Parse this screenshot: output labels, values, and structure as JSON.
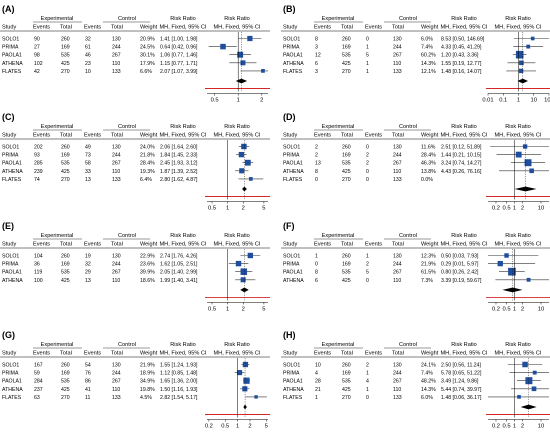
{
  "header": {
    "experimental": "Experimental",
    "control": "Control",
    "risk_ratio": "Risk Ratio",
    "study": "Study",
    "events": "Events",
    "total": "Total",
    "weight": "Weight",
    "mh": "MH, Fixed, 95% CI"
  },
  "colors": {
    "box": "#1f4e9c",
    "diamond": "#000000",
    "line": "#333333",
    "red": "#d62728",
    "rule": "#000000"
  },
  "chart_data": [
    {
      "type": "forest",
      "panel_label": "(A)",
      "studies": [
        {
          "study": "SOLO1",
          "e_events": 90,
          "e_total": 260,
          "c_events": 32,
          "c_total": 130,
          "weight": "20.9%",
          "rr_text": "1.41 [1.00, 1.98]",
          "rr": 1.41,
          "lo": 1.0,
          "hi": 1.98
        },
        {
          "study": "PRIMA",
          "e_events": 27,
          "e_total": 169,
          "c_events": 61,
          "c_total": 244,
          "weight": "24.5%",
          "rr_text": "0.64 [0.42, 0.96]",
          "rr": 0.64,
          "lo": 0.42,
          "hi": 0.96
        },
        {
          "study": "PAOLA1",
          "e_events": 98,
          "e_total": 535,
          "c_events": 46,
          "c_total": 267,
          "weight": "30.1%",
          "rr_text": "1.06 [0.77, 1.46]",
          "rr": 1.06,
          "lo": 0.77,
          "hi": 1.46
        },
        {
          "study": "ATHENA",
          "e_events": 102,
          "e_total": 425,
          "c_events": 23,
          "c_total": 110,
          "weight": "17.9%",
          "rr_text": "1.15 [0.77, 1.71]",
          "rr": 1.15,
          "lo": 0.77,
          "hi": 1.71
        },
        {
          "study": "FLATES",
          "e_events": 42,
          "e_total": 270,
          "c_events": 10,
          "c_total": 133,
          "weight": "6.6%",
          "rr_text": "2.07 [1.07, 3.99]",
          "rr": 2.07,
          "lo": 1.07,
          "hi": 3.99
        }
      ],
      "pooled": {
        "rr": 1.1,
        "lo": 0.93,
        "hi": 1.3
      },
      "x_ticks": [
        "0.5",
        "1",
        "2"
      ],
      "x_tick_values": [
        0.5,
        1,
        2
      ],
      "xlim": [
        0.4,
        2.4
      ]
    },
    {
      "type": "forest",
      "panel_label": "(B)",
      "studies": [
        {
          "study": "SOLO1",
          "e_events": 8,
          "e_total": 260,
          "c_events": 0,
          "c_total": 130,
          "weight": "6.0%",
          "rr_text": "8.53 [0.50, 146.69]",
          "rr": 8.53,
          "lo": 0.5,
          "hi": 146.69
        },
        {
          "study": "PRIMA",
          "e_events": 3,
          "e_total": 169,
          "c_events": 1,
          "c_total": 244,
          "weight": "7.4%",
          "rr_text": "4.33 [0.45, 41.29]",
          "rr": 4.33,
          "lo": 0.45,
          "hi": 41.29
        },
        {
          "study": "PAOLA1",
          "e_events": 12,
          "e_total": 535,
          "c_events": 5,
          "c_total": 267,
          "weight": "60.2%",
          "rr_text": "1.20 [0.43, 3.36]",
          "rr": 1.2,
          "lo": 0.43,
          "hi": 3.36
        },
        {
          "study": "ATHENA",
          "e_events": 6,
          "e_total": 425,
          "c_events": 1,
          "c_total": 110,
          "weight": "14.3%",
          "rr_text": "1.55 [0.19, 12.77]",
          "rr": 1.55,
          "lo": 0.19,
          "hi": 12.77
        },
        {
          "study": "FLATES",
          "e_events": 3,
          "e_total": 270,
          "c_events": 1,
          "c_total": 133,
          "weight": "12.1%",
          "rr_text": "1.48 [0.16, 14.07]",
          "rr": 1.48,
          "lo": 0.16,
          "hi": 14.07
        }
      ],
      "pooled": {
        "rr": 1.9,
        "lo": 0.85,
        "hi": 4.2
      },
      "x_ticks": [
        "0.01",
        "0.1",
        "1",
        "10",
        "100"
      ],
      "x_tick_values": [
        0.01,
        0.1,
        1,
        10,
        100
      ],
      "xlim": [
        0.01,
        100
      ]
    },
    {
      "type": "forest",
      "panel_label": "(C)",
      "studies": [
        {
          "study": "SOLO1",
          "e_events": 202,
          "e_total": 260,
          "c_events": 49,
          "c_total": 130,
          "weight": "24.0%",
          "rr_text": "2.06 [1.64, 2.60]",
          "rr": 2.06,
          "lo": 1.64,
          "hi": 2.6
        },
        {
          "study": "PRIMA",
          "e_events": 93,
          "e_total": 169,
          "c_events": 73,
          "c_total": 244,
          "weight": "21.8%",
          "rr_text": "1.84 [1.45, 2.33]",
          "rr": 1.84,
          "lo": 1.45,
          "hi": 2.33
        },
        {
          "study": "PAOLA1",
          "e_events": 285,
          "e_total": 535,
          "c_events": 58,
          "c_total": 267,
          "weight": "28.4%",
          "rr_text": "2.45 [1.93, 3.12]",
          "rr": 2.45,
          "lo": 1.93,
          "hi": 3.12
        },
        {
          "study": "ATHENA",
          "e_events": 239,
          "e_total": 425,
          "c_events": 33,
          "c_total": 110,
          "weight": "19.3%",
          "rr_text": "1.87 [1.39, 2.52]",
          "rr": 1.87,
          "lo": 1.39,
          "hi": 2.52
        },
        {
          "study": "FLATES",
          "e_events": 74,
          "e_total": 270,
          "c_events": 13,
          "c_total": 133,
          "weight": "6.4%",
          "rr_text": "2.80 [1.62, 4.87]",
          "rr": 2.8,
          "lo": 1.62,
          "hi": 4.87
        }
      ],
      "pooled": {
        "rr": 2.1,
        "lo": 1.9,
        "hi": 2.35
      },
      "x_ticks": [
        "0.5",
        "1",
        "2",
        "5"
      ],
      "x_tick_values": [
        0.5,
        1,
        2,
        5
      ],
      "xlim": [
        0.4,
        6
      ]
    },
    {
      "type": "forest",
      "panel_label": "(D)",
      "studies": [
        {
          "study": "SOLO1",
          "e_events": 2,
          "e_total": 260,
          "c_events": 0,
          "c_total": 130,
          "weight": "11.6%",
          "rr_text": "2.51 [0.12, 51.89]",
          "rr": 2.51,
          "lo": 0.12,
          "hi": 51.89
        },
        {
          "study": "PRIMA",
          "e_events": 2,
          "e_total": 169,
          "c_events": 2,
          "c_total": 244,
          "weight": "28.4%",
          "rr_text": "1.44 [0.21, 10.15]",
          "rr": 1.44,
          "lo": 0.21,
          "hi": 10.15
        },
        {
          "study": "PAOLA1",
          "e_events": 13,
          "e_total": 535,
          "c_events": 2,
          "c_total": 267,
          "weight": "46.3%",
          "rr_text": "3.24 [0.74, 14.27]",
          "rr": 3.24,
          "lo": 0.74,
          "hi": 14.27
        },
        {
          "study": "ATHENA",
          "e_events": 8,
          "e_total": 425,
          "c_events": 0,
          "c_total": 110,
          "weight": "13.8%",
          "rr_text": "4.43 [0.26, 76.16]",
          "rr": 4.43,
          "lo": 0.26,
          "hi": 76.16
        },
        {
          "study": "FLATES",
          "e_events": 0,
          "e_total": 270,
          "c_events": 0,
          "c_total": 133,
          "weight": "0.0%",
          "rr_text": "",
          "rr": null,
          "lo": null,
          "hi": null
        }
      ],
      "pooled": {
        "rr": 2.6,
        "lo": 1.0,
        "hi": 6.8
      },
      "x_ticks": [
        "0.2",
        "0.5",
        "1",
        "2",
        "10"
      ],
      "x_tick_values": [
        0.2,
        0.5,
        1,
        2,
        10
      ],
      "xlim": [
        0.1,
        20
      ]
    },
    {
      "type": "forest",
      "panel_label": "(E)",
      "studies": [
        {
          "study": "SOLO1",
          "e_events": 104,
          "e_total": 260,
          "c_events": 19,
          "c_total": 130,
          "weight": "22.9%",
          "rr_text": "2.74 [1.76, 4.26]",
          "rr": 2.74,
          "lo": 1.76,
          "hi": 4.26
        },
        {
          "study": "PRIMA",
          "e_events": 36,
          "e_total": 169,
          "c_events": 32,
          "c_total": 244,
          "weight": "23.6%",
          "rr_text": "1.62 [1.05, 2.51]",
          "rr": 1.62,
          "lo": 1.05,
          "hi": 2.51
        },
        {
          "study": "PAOLA1",
          "e_events": 119,
          "e_total": 535,
          "c_events": 29,
          "c_total": 267,
          "weight": "39.9%",
          "rr_text": "2.05 [1.40, 2.99]",
          "rr": 2.05,
          "lo": 1.4,
          "hi": 2.99
        },
        {
          "study": "ATHENA",
          "e_events": 100,
          "e_total": 425,
          "c_events": 13,
          "c_total": 110,
          "weight": "18.6%",
          "rr_text": "1.99 [1.40, 3.41]",
          "rr": 1.99,
          "lo": 1.4,
          "hi": 3.41
        }
      ],
      "pooled": {
        "rr": 2.1,
        "lo": 1.75,
        "hi": 2.55
      },
      "x_ticks": [
        "0.5",
        "1",
        "2",
        "5"
      ],
      "x_tick_values": [
        0.5,
        1,
        2,
        5
      ],
      "xlim": [
        0.4,
        6
      ]
    },
    {
      "type": "forest",
      "panel_label": "(F)",
      "studies": [
        {
          "study": "SOLO1",
          "e_events": 1,
          "e_total": 260,
          "c_events": 1,
          "c_total": 130,
          "weight": "12.3%",
          "rr_text": "0.50 [0.03, 7.93]",
          "rr": 0.5,
          "lo": 0.03,
          "hi": 7.93
        },
        {
          "study": "PRIMA",
          "e_events": 0,
          "e_total": 169,
          "c_events": 2,
          "c_total": 244,
          "weight": "21.9%",
          "rr_text": "0.29 [0.01, 5.97]",
          "rr": 0.29,
          "lo": 0.01,
          "hi": 5.97
        },
        {
          "study": "PAOLA1",
          "e_events": 8,
          "e_total": 535,
          "c_events": 5,
          "c_total": 267,
          "weight": "61.5%",
          "rr_text": "0.80 [0.26, 2.42]",
          "rr": 0.8,
          "lo": 0.26,
          "hi": 2.42
        },
        {
          "study": "ATHENA",
          "e_events": 6,
          "e_total": 425,
          "c_events": 0,
          "c_total": 110,
          "weight": "7.3%",
          "rr_text": "3.39 [0.19, 59.67]",
          "rr": 3.39,
          "lo": 0.19,
          "hi": 59.67
        }
      ],
      "pooled": {
        "rr": 0.85,
        "lo": 0.35,
        "hi": 2.0
      },
      "x_ticks": [
        "0.2",
        "0.5",
        "1",
        "2",
        "10"
      ],
      "x_tick_values": [
        0.2,
        0.5,
        1,
        2,
        10
      ],
      "xlim": [
        0.1,
        20
      ]
    },
    {
      "type": "forest",
      "panel_label": "(G)",
      "studies": [
        {
          "study": "SOLO1",
          "e_events": 167,
          "e_total": 260,
          "c_events": 54,
          "c_total": 130,
          "weight": "21.9%",
          "rr_text": "1.55 [1.24, 1.93]",
          "rr": 1.55,
          "lo": 1.24,
          "hi": 1.93
        },
        {
          "study": "PRIMA",
          "e_events": 59,
          "e_total": 169,
          "c_events": 76,
          "c_total": 244,
          "weight": "18.9%",
          "rr_text": "1.12 [0.85, 1.48]",
          "rr": 1.12,
          "lo": 0.85,
          "hi": 1.48
        },
        {
          "study": "PAOLA1",
          "e_events": 284,
          "e_total": 535,
          "c_events": 86,
          "c_total": 267,
          "weight": "34.9%",
          "rr_text": "1.65 [1.36, 2.00]",
          "rr": 1.65,
          "lo": 1.36,
          "hi": 2.0
        },
        {
          "study": "ATHENA",
          "e_events": 237,
          "e_total": 425,
          "c_events": 41,
          "c_total": 110,
          "weight": "19.8%",
          "rr_text": "1.50 [1.16, 1.93]",
          "rr": 1.5,
          "lo": 1.16,
          "hi": 1.93
        },
        {
          "study": "FLATES",
          "e_events": 63,
          "e_total": 270,
          "c_events": 11,
          "c_total": 133,
          "weight": "4.5%",
          "rr_text": "2.82 [1.54, 5.17]",
          "rr": 2.82,
          "lo": 1.54,
          "hi": 5.17
        }
      ],
      "pooled": {
        "rr": 1.52,
        "lo": 1.38,
        "hi": 1.68
      },
      "x_ticks": [
        "0.2",
        "0.5",
        "1",
        "2",
        "5"
      ],
      "x_tick_values": [
        0.2,
        0.5,
        1,
        2,
        5
      ],
      "xlim": [
        0.18,
        5.5
      ]
    },
    {
      "type": "forest",
      "panel_label": "(H)",
      "studies": [
        {
          "study": "SOLO1",
          "e_events": 10,
          "e_total": 260,
          "c_events": 2,
          "c_total": 130,
          "weight": "24.1%",
          "rr_text": "2.50 [0.56, 11.24]",
          "rr": 2.5,
          "lo": 0.56,
          "hi": 11.24
        },
        {
          "study": "PRIMA",
          "e_events": 4,
          "e_total": 169,
          "c_events": 1,
          "c_total": 244,
          "weight": "7.4%",
          "rr_text": "5.78 [0.65, 51.22]",
          "rr": 5.78,
          "lo": 0.65,
          "hi": 51.22
        },
        {
          "study": "PAOLA1",
          "e_events": 28,
          "e_total": 535,
          "c_events": 4,
          "c_total": 267,
          "weight": "48.2%",
          "rr_text": "3.49 [1.24, 9.86]",
          "rr": 3.49,
          "lo": 1.24,
          "hi": 9.86
        },
        {
          "study": "ATHENA",
          "e_events": 21,
          "e_total": 425,
          "c_events": 1,
          "c_total": 110,
          "weight": "14.3%",
          "rr_text": "5.44 [0.74, 39.97]",
          "rr": 5.44,
          "lo": 0.74,
          "hi": 39.97
        },
        {
          "study": "FLATES",
          "e_events": 1,
          "e_total": 270,
          "c_events": 0,
          "c_total": 133,
          "weight": "6.0%",
          "rr_text": "1.48 [0.06, 36.17]",
          "rr": 1.48,
          "lo": 0.06,
          "hi": 36.17
        }
      ],
      "pooled": {
        "rr": 3.4,
        "lo": 1.7,
        "hi": 6.8
      },
      "x_ticks": [
        "0.2",
        "0.5",
        "1",
        "2",
        "10"
      ],
      "x_tick_values": [
        0.2,
        0.5,
        1,
        2,
        10
      ],
      "xlim": [
        0.1,
        20
      ]
    }
  ]
}
